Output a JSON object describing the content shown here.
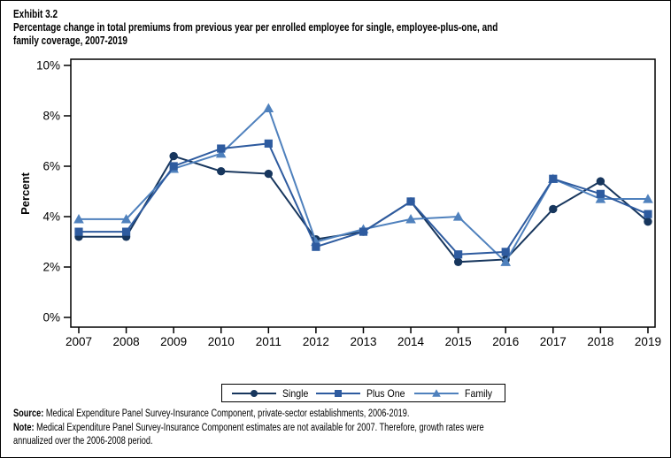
{
  "page": {
    "exhibit_label": "Exhibit 3.2",
    "title_lines": [
      "Percentage change in total premiums from previous year per enrolled employee for single, employee-plus-one, and",
      "family coverage, 2007-2019"
    ]
  },
  "footer": {
    "source_label": "Source:",
    "source_text": "Medical Expenditure Panel Survey-Insurance Component, private-sector establishments, 2006-2019.",
    "note_label": "Note:",
    "note_text": "Medical Expenditure Panel Survey-Insurance Component estimates are not available for 2007. Therefore, growth rates were annualized over the 2006-2008 period."
  },
  "chart_data": {
    "type": "line",
    "title": "",
    "xlabel": "",
    "ylabel": "Percent",
    "ylim": [
      0,
      10
    ],
    "grid": false,
    "legend_position": "bottom",
    "y_ticks": [
      0,
      2,
      4,
      6,
      8,
      10
    ],
    "y_tick_labels": [
      "0%",
      "2%",
      "4%",
      "6%",
      "8%",
      "10%"
    ],
    "categories": [
      "2007",
      "2008",
      "2009",
      "2010",
      "2011",
      "2012",
      "2013",
      "2014",
      "2015",
      "2016",
      "2017",
      "2018",
      "2019"
    ],
    "series": [
      {
        "name": "Single",
        "marker": "circle",
        "color": "#17365D",
        "values": [
          3.2,
          3.2,
          6.4,
          5.8,
          5.7,
          3.1,
          3.4,
          4.6,
          2.2,
          2.3,
          4.3,
          5.4,
          3.8
        ]
      },
      {
        "name": "Plus One",
        "marker": "square",
        "color": "#2E5B9F",
        "values": [
          3.4,
          3.4,
          6.0,
          6.7,
          6.9,
          2.8,
          3.4,
          4.6,
          2.5,
          2.6,
          5.5,
          4.9,
          4.1
        ]
      },
      {
        "name": "Family",
        "marker": "triangle",
        "color": "#4F81BD",
        "values": [
          3.9,
          3.9,
          5.9,
          6.5,
          8.3,
          3.0,
          3.5,
          3.9,
          4.0,
          2.2,
          5.5,
          4.7,
          4.7
        ]
      }
    ]
  }
}
